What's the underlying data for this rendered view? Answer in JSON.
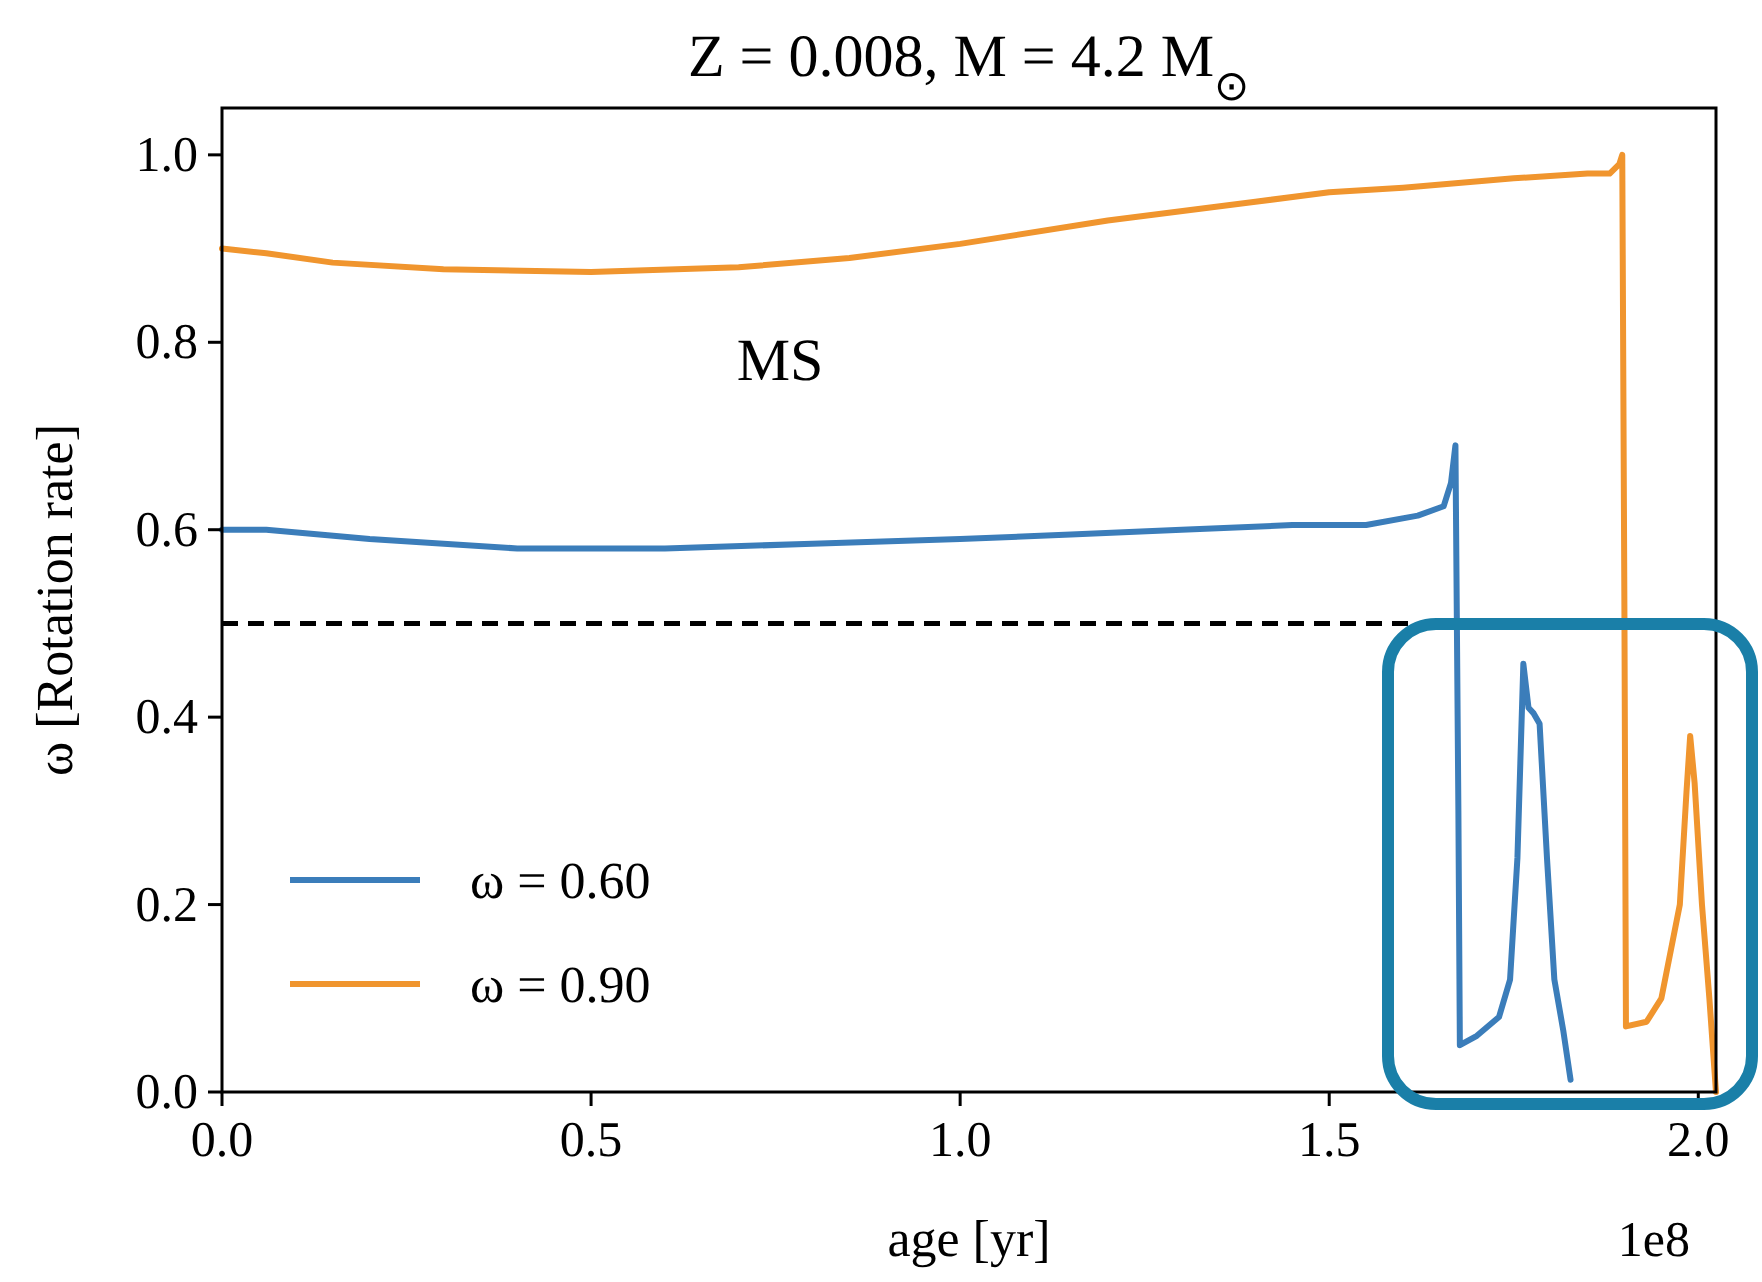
{
  "chart_data": {
    "type": "line",
    "title": "Z = 0.008, M = 4.2 M$_{⊙}$",
    "xlabel": "age [yr]",
    "ylabel": "ω [Rotation rate]",
    "annotations": [
      "MS",
      "1e8"
    ],
    "xlim": [
      0,
      2.024
    ],
    "ylim": [
      0,
      1.05
    ],
    "xticks": [
      {
        "value": 0,
        "label": "0.0"
      },
      0.5,
      {
        "value": 1,
        "label": "1.0"
      },
      1.5,
      {
        "value": 2,
        "label": "2.0"
      }
    ],
    "yticks": [
      {
        "value": 0,
        "label": "0.0"
      },
      0.2,
      0.4,
      0.6,
      0.8,
      {
        "value": 1,
        "label": "1.0"
      }
    ],
    "ref_lines": [
      {
        "axis": "y",
        "value": 0.5,
        "color": "#000000",
        "line_style": "dashed"
      }
    ],
    "grid": false,
    "legend": "bottom left",
    "line_style": "solid",
    "series": [
      {
        "name": "ω = 0.60",
        "color": "#3b7dba",
        "x": [
          0,
          0.06,
          0.2,
          0.4,
          0.6,
          0.8,
          1.0,
          1.15,
          1.3,
          1.45,
          1.55,
          1.62,
          1.655,
          1.665,
          1.671,
          1.675,
          1.677,
          1.7,
          1.73,
          1.745,
          1.755,
          1.763,
          1.77,
          1.777,
          1.785,
          1.795,
          1.805,
          1.817,
          1.827
        ],
        "values": [
          0.6,
          0.6,
          0.59,
          0.58,
          0.58,
          0.585,
          0.59,
          0.595,
          0.6,
          0.605,
          0.605,
          0.615,
          0.625,
          0.65,
          0.69,
          0.3,
          0.05,
          0.06,
          0.08,
          0.12,
          0.25,
          0.457,
          0.41,
          0.404,
          0.393,
          0.25,
          0.12,
          0.066,
          0.013
        ]
      },
      {
        "name": "ω = 0.90",
        "color": "#f0952e",
        "x": [
          0,
          0.06,
          0.15,
          0.3,
          0.5,
          0.7,
          0.85,
          1.0,
          1.2,
          1.4,
          1.5,
          1.6,
          1.75,
          1.85,
          1.88,
          1.893,
          1.897,
          1.9,
          1.902,
          1.93,
          1.95,
          1.975,
          1.984,
          1.989,
          1.995,
          2.005,
          2.015,
          2.024
        ],
        "values": [
          0.9,
          0.895,
          0.885,
          0.878,
          0.875,
          0.88,
          0.89,
          0.905,
          0.93,
          0.95,
          0.96,
          0.965,
          0.975,
          0.98,
          0.98,
          0.99,
          1.0,
          0.5,
          0.07,
          0.075,
          0.1,
          0.2,
          0.32,
          0.38,
          0.33,
          0.2,
          0.1,
          0.0
        ]
      }
    ]
  }
}
